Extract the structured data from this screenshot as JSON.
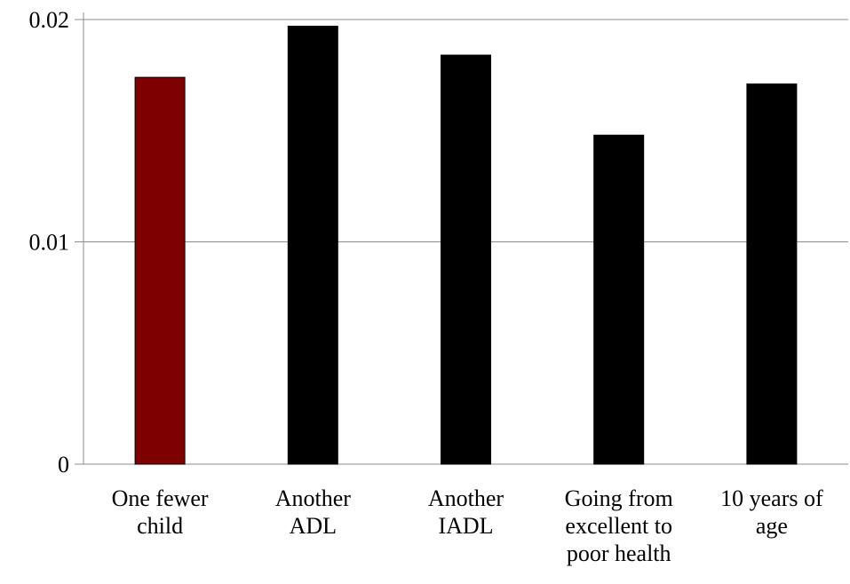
{
  "chart_data": {
    "type": "bar",
    "title": "",
    "xlabel": "",
    "ylabel": "",
    "categories": [
      [
        "One fewer",
        "child"
      ],
      [
        "Another",
        "ADL"
      ],
      [
        "Another",
        "IADL"
      ],
      [
        "Going from",
        "excellent to",
        "poor health"
      ],
      [
        "10 years of",
        "age"
      ]
    ],
    "values": [
      0.0174,
      0.0197,
      0.0184,
      0.0148,
      0.0171
    ],
    "bar_colors": [
      "#7f0000",
      "#000000",
      "#000000",
      "#000000",
      "#000000"
    ],
    "ylim": [
      0,
      0.02
    ],
    "yticks": [
      {
        "value": 0,
        "label": "0"
      },
      {
        "value": 0.01,
        "label": "0.01"
      },
      {
        "value": 0.02,
        "label": "0.02"
      }
    ],
    "grid": true,
    "gridline_color": "#8c8c8c",
    "legend": "none"
  }
}
